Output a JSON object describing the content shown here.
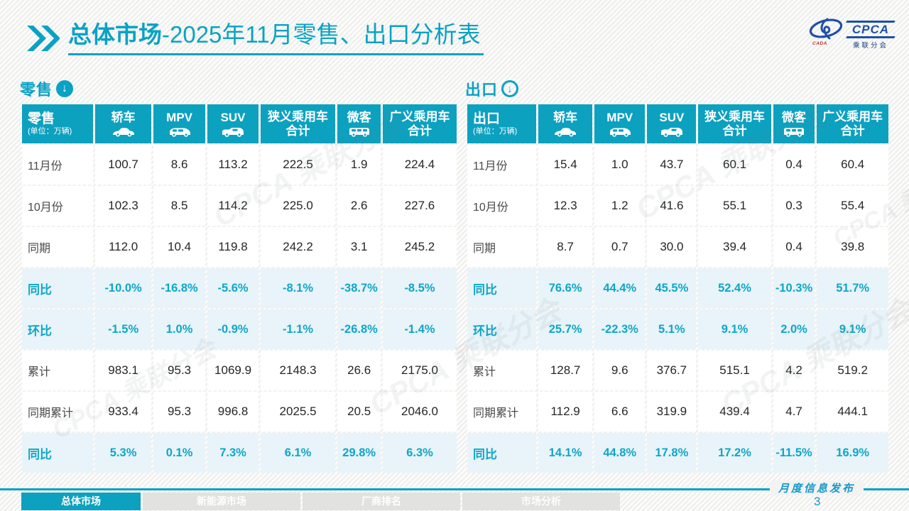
{
  "page": {
    "title_bold": "总体市场",
    "title_rest": "-2025年11月零售、出口分析表",
    "footer_note": "月度信息发布",
    "page_number": "3",
    "accent_color": "#0aa2c4"
  },
  "logo": {
    "text": "CPCA",
    "subtext": "乘联分会",
    "mark_small_text": "CADA"
  },
  "watermark": {
    "text": "CPCA 乘联分会"
  },
  "tabs": [
    {
      "label": "总体市场",
      "active": true
    },
    {
      "label": "新能源市场",
      "active": false
    },
    {
      "label": "厂商排名",
      "active": false
    },
    {
      "label": "市场分析",
      "active": false
    }
  ],
  "tables": [
    {
      "id": "retail",
      "section_label": "零售",
      "section_icon": "circle-down-arrow-solid-icon",
      "corner_label": "零售",
      "unit": "(单位：万辆)",
      "columns": [
        {
          "label": "轿车",
          "icon": "sedan-car-icon"
        },
        {
          "label": "MPV",
          "icon": "mpv-car-icon"
        },
        {
          "label": "SUV",
          "icon": "suv-car-icon"
        },
        {
          "label": "狭义乘用车\n合计",
          "icon": null
        },
        {
          "label": "微客",
          "icon": "van-car-icon"
        },
        {
          "label": "广义乘用车\n合计",
          "icon": null
        }
      ],
      "rows": [
        {
          "label": "11月份",
          "highlight": false,
          "values": [
            "100.7",
            "8.6",
            "113.2",
            "222.5",
            "1.9",
            "224.4"
          ]
        },
        {
          "label": "10月份",
          "highlight": false,
          "values": [
            "102.3",
            "8.5",
            "114.2",
            "225.0",
            "2.6",
            "227.6"
          ]
        },
        {
          "label": "同期",
          "highlight": false,
          "values": [
            "112.0",
            "10.4",
            "119.8",
            "242.2",
            "3.1",
            "245.2"
          ]
        },
        {
          "label": "同比",
          "highlight": true,
          "values": [
            "-10.0%",
            "-16.8%",
            "-5.6%",
            "-8.1%",
            "-38.7%",
            "-8.5%"
          ]
        },
        {
          "label": "环比",
          "highlight": true,
          "values": [
            "-1.5%",
            "1.0%",
            "-0.9%",
            "-1.1%",
            "-26.8%",
            "-1.4%"
          ]
        },
        {
          "label": "累计",
          "highlight": false,
          "values": [
            "983.1",
            "95.3",
            "1069.9",
            "2148.3",
            "26.6",
            "2175.0"
          ]
        },
        {
          "label": "同期累计",
          "highlight": false,
          "values": [
            "933.4",
            "95.3",
            "996.8",
            "2025.5",
            "20.5",
            "2046.0"
          ]
        },
        {
          "label": "同比",
          "highlight": true,
          "values": [
            "5.3%",
            "0.1%",
            "7.3%",
            "6.1%",
            "29.8%",
            "6.3%"
          ]
        }
      ]
    },
    {
      "id": "export",
      "section_label": "出口",
      "section_icon": "circle-down-arrow-ring-icon",
      "corner_label": "出口",
      "unit": "(单位：万辆)",
      "columns": [
        {
          "label": "轿车",
          "icon": "sedan-car-icon"
        },
        {
          "label": "MPV",
          "icon": "mpv-car-icon"
        },
        {
          "label": "SUV",
          "icon": "suv-car-icon"
        },
        {
          "label": "狭义乘用车\n合计",
          "icon": null
        },
        {
          "label": "微客",
          "icon": "van-car-icon"
        },
        {
          "label": "广义乘用车\n合计",
          "icon": null
        }
      ],
      "rows": [
        {
          "label": "11月份",
          "highlight": false,
          "values": [
            "15.4",
            "1.0",
            "43.7",
            "60.1",
            "0.4",
            "60.4"
          ]
        },
        {
          "label": "10月份",
          "highlight": false,
          "values": [
            "12.3",
            "1.2",
            "41.6",
            "55.1",
            "0.3",
            "55.4"
          ]
        },
        {
          "label": "同期",
          "highlight": false,
          "values": [
            "8.7",
            "0.7",
            "30.0",
            "39.4",
            "0.4",
            "39.8"
          ]
        },
        {
          "label": "同比",
          "highlight": true,
          "values": [
            "76.6%",
            "44.4%",
            "45.5%",
            "52.4%",
            "-10.3%",
            "51.7%"
          ]
        },
        {
          "label": "环比",
          "highlight": true,
          "values": [
            "25.7%",
            "-22.3%",
            "5.1%",
            "9.1%",
            "2.0%",
            "9.1%"
          ]
        },
        {
          "label": "累计",
          "highlight": false,
          "values": [
            "128.7",
            "9.6",
            "376.7",
            "515.1",
            "4.2",
            "519.2"
          ]
        },
        {
          "label": "同期累计",
          "highlight": false,
          "values": [
            "112.9",
            "6.6",
            "319.9",
            "439.4",
            "4.7",
            "444.1"
          ]
        },
        {
          "label": "同比",
          "highlight": true,
          "values": [
            "14.1%",
            "44.8%",
            "17.8%",
            "17.2%",
            "-11.5%",
            "16.9%"
          ]
        }
      ]
    }
  ]
}
